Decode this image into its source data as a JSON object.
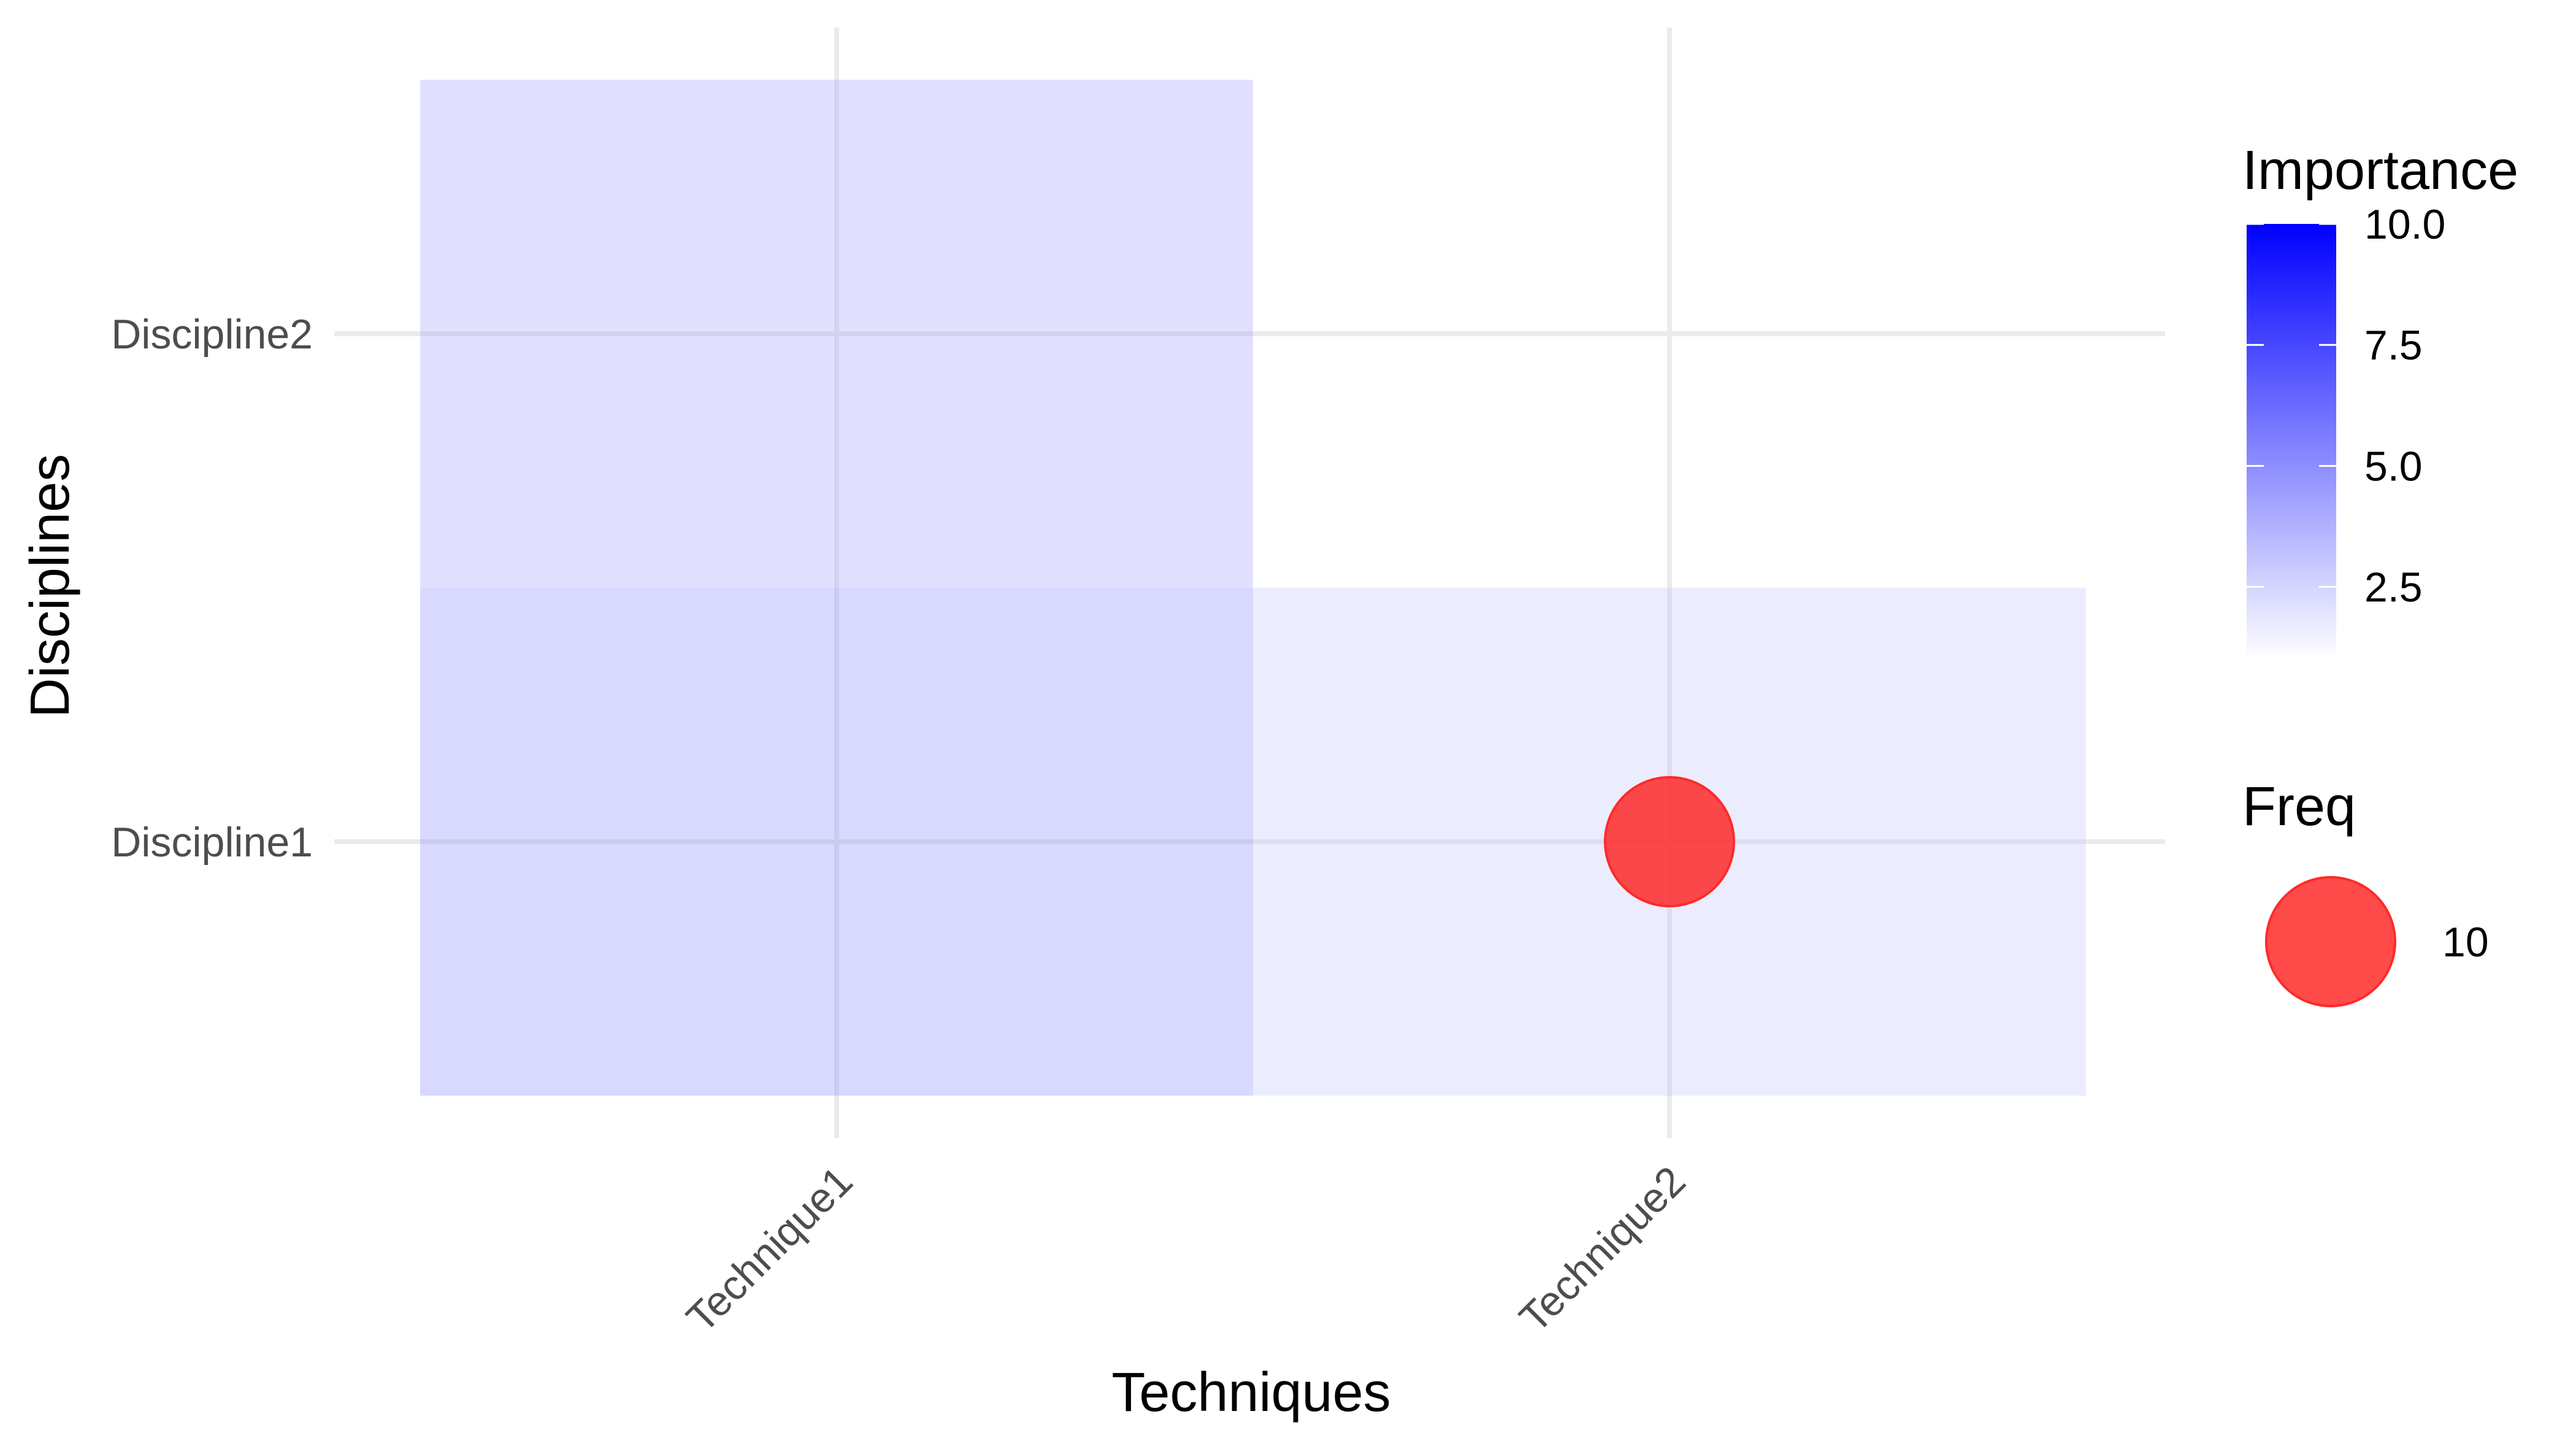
{
  "chart_data": {
    "type": "heatmap",
    "xlabel": "Techniques",
    "ylabel": "Disciplines",
    "x_categories": [
      "Technique1",
      "Technique2"
    ],
    "y_categories": [
      "Discipline1",
      "Discipline2"
    ],
    "cells": [
      {
        "x": "Technique1",
        "y": "Discipline2",
        "importance": 4.5
      },
      {
        "x": "Technique1",
        "y": "Discipline1",
        "importance": 5.5
      },
      {
        "x": "Technique2",
        "y": "Discipline1",
        "importance": 3.2
      }
    ],
    "points": [
      {
        "x": "Technique2",
        "y": "Discipline1",
        "freq": 10
      }
    ],
    "fill_legend": {
      "title": "Importance",
      "min": 1,
      "max": 10,
      "ticks": [
        "2.5",
        "5.0",
        "7.5",
        "10.0"
      ],
      "low_color": "#ffffff",
      "high_color": "#0000ff"
    },
    "size_legend": {
      "title": "Freq",
      "items": [
        {
          "label": "10",
          "value": 10
        }
      ]
    },
    "point_color": "#ff2a2a",
    "tile_alpha": 0.3,
    "grid": true,
    "legend_position": "right"
  }
}
